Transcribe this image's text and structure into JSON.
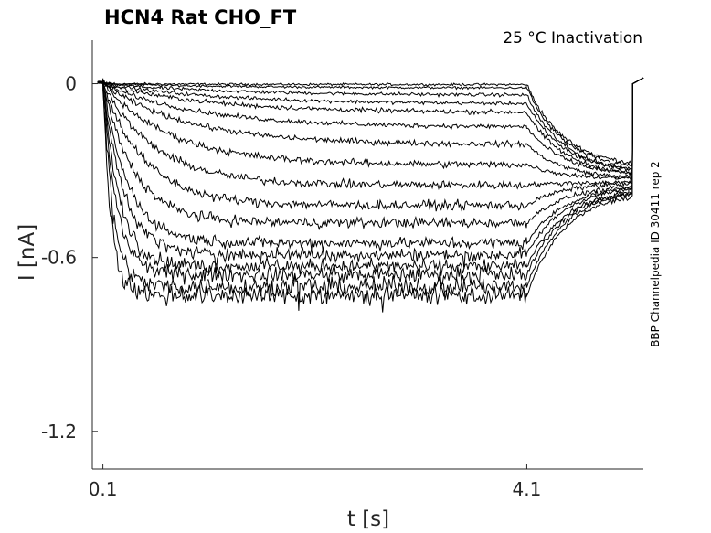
{
  "chart_data": {
    "type": "line",
    "title": "HCN4  Rat  CHO_FT",
    "subtitle": "25 °C  Inactivation",
    "xlabel": "t [s]",
    "ylabel": "I [nA]",
    "side_label": "BBP Channelpedia ID 30411 rep 2",
    "xlim": [
      0.0,
      5.2
    ],
    "ylim": [
      -1.33,
      0.15
    ],
    "xticks": [
      0.1,
      4.1
    ],
    "xtick_labels": [
      "0.1",
      "4.1"
    ],
    "yticks": [
      0,
      -0.6,
      -1.2
    ],
    "ytick_labels": [
      "0",
      "-0.6",
      "-1.2"
    ],
    "grid": false,
    "trace_color": "#000000",
    "protocol": {
      "step_start_s": 0.1,
      "step_end_s": 4.1,
      "tail_end_s": 5.1
    },
    "series": [
      {
        "steady": -0.003,
        "tau": 1.0,
        "tail": -0.29,
        "noise": 0.002
      },
      {
        "steady": -0.015,
        "tau": 1.3,
        "tail": -0.3,
        "noise": 0.002
      },
      {
        "steady": -0.04,
        "tau": 1.2,
        "tail": -0.31,
        "noise": 0.003
      },
      {
        "steady": -0.07,
        "tau": 1.1,
        "tail": -0.31,
        "noise": 0.003
      },
      {
        "steady": -0.1,
        "tau": 1.0,
        "tail": -0.32,
        "noise": 0.004
      },
      {
        "steady": -0.15,
        "tau": 0.9,
        "tail": -0.32,
        "noise": 0.004
      },
      {
        "steady": -0.21,
        "tau": 0.8,
        "tail": -0.33,
        "noise": 0.005
      },
      {
        "steady": -0.28,
        "tau": 0.65,
        "tail": -0.33,
        "noise": 0.006
      },
      {
        "steady": -0.35,
        "tau": 0.5,
        "tail": -0.34,
        "noise": 0.007
      },
      {
        "steady": -0.42,
        "tau": 0.4,
        "tail": -0.34,
        "noise": 0.008
      },
      {
        "steady": -0.48,
        "tau": 0.3,
        "tail": -0.35,
        "noise": 0.009
      },
      {
        "steady": -0.55,
        "tau": 0.24,
        "tail": -0.35,
        "noise": 0.01
      },
      {
        "steady": -0.59,
        "tau": 0.2,
        "tail": -0.35,
        "noise": 0.011
      },
      {
        "steady": -0.63,
        "tau": 0.16,
        "tail": -0.36,
        "noise": 0.012
      },
      {
        "steady": -0.66,
        "tau": 0.13,
        "tail": -0.36,
        "noise": 0.013
      },
      {
        "steady": -0.7,
        "tau": 0.1,
        "tail": -0.36,
        "noise": 0.015
      },
      {
        "steady": -0.73,
        "tau": 0.08,
        "tail": -0.37,
        "noise": 0.017
      }
    ]
  }
}
